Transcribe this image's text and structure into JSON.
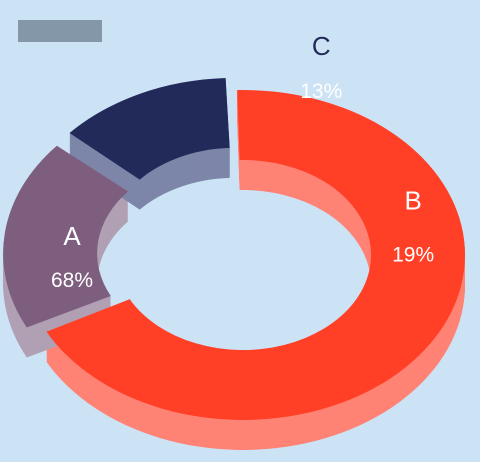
{
  "colors": {
    "background": "#cce3f6",
    "legend_swatch": "#8397a8"
  },
  "chart_data": {
    "type": "pie",
    "style": "3d-donut",
    "title": "",
    "categories": [
      "A",
      "B",
      "C"
    ],
    "values": [
      68,
      19,
      13
    ],
    "value_labels": [
      "68%",
      "19%",
      "13%"
    ],
    "colors": {
      "A": {
        "top": "#ff3f26",
        "side": "#ff8375"
      },
      "B": {
        "top": "#7e5e7f",
        "side": "#b1a0b4"
      },
      "C": {
        "top": "#222a5a",
        "side": "#7d86a8"
      }
    },
    "exploded": [
      "B",
      "C"
    ]
  }
}
